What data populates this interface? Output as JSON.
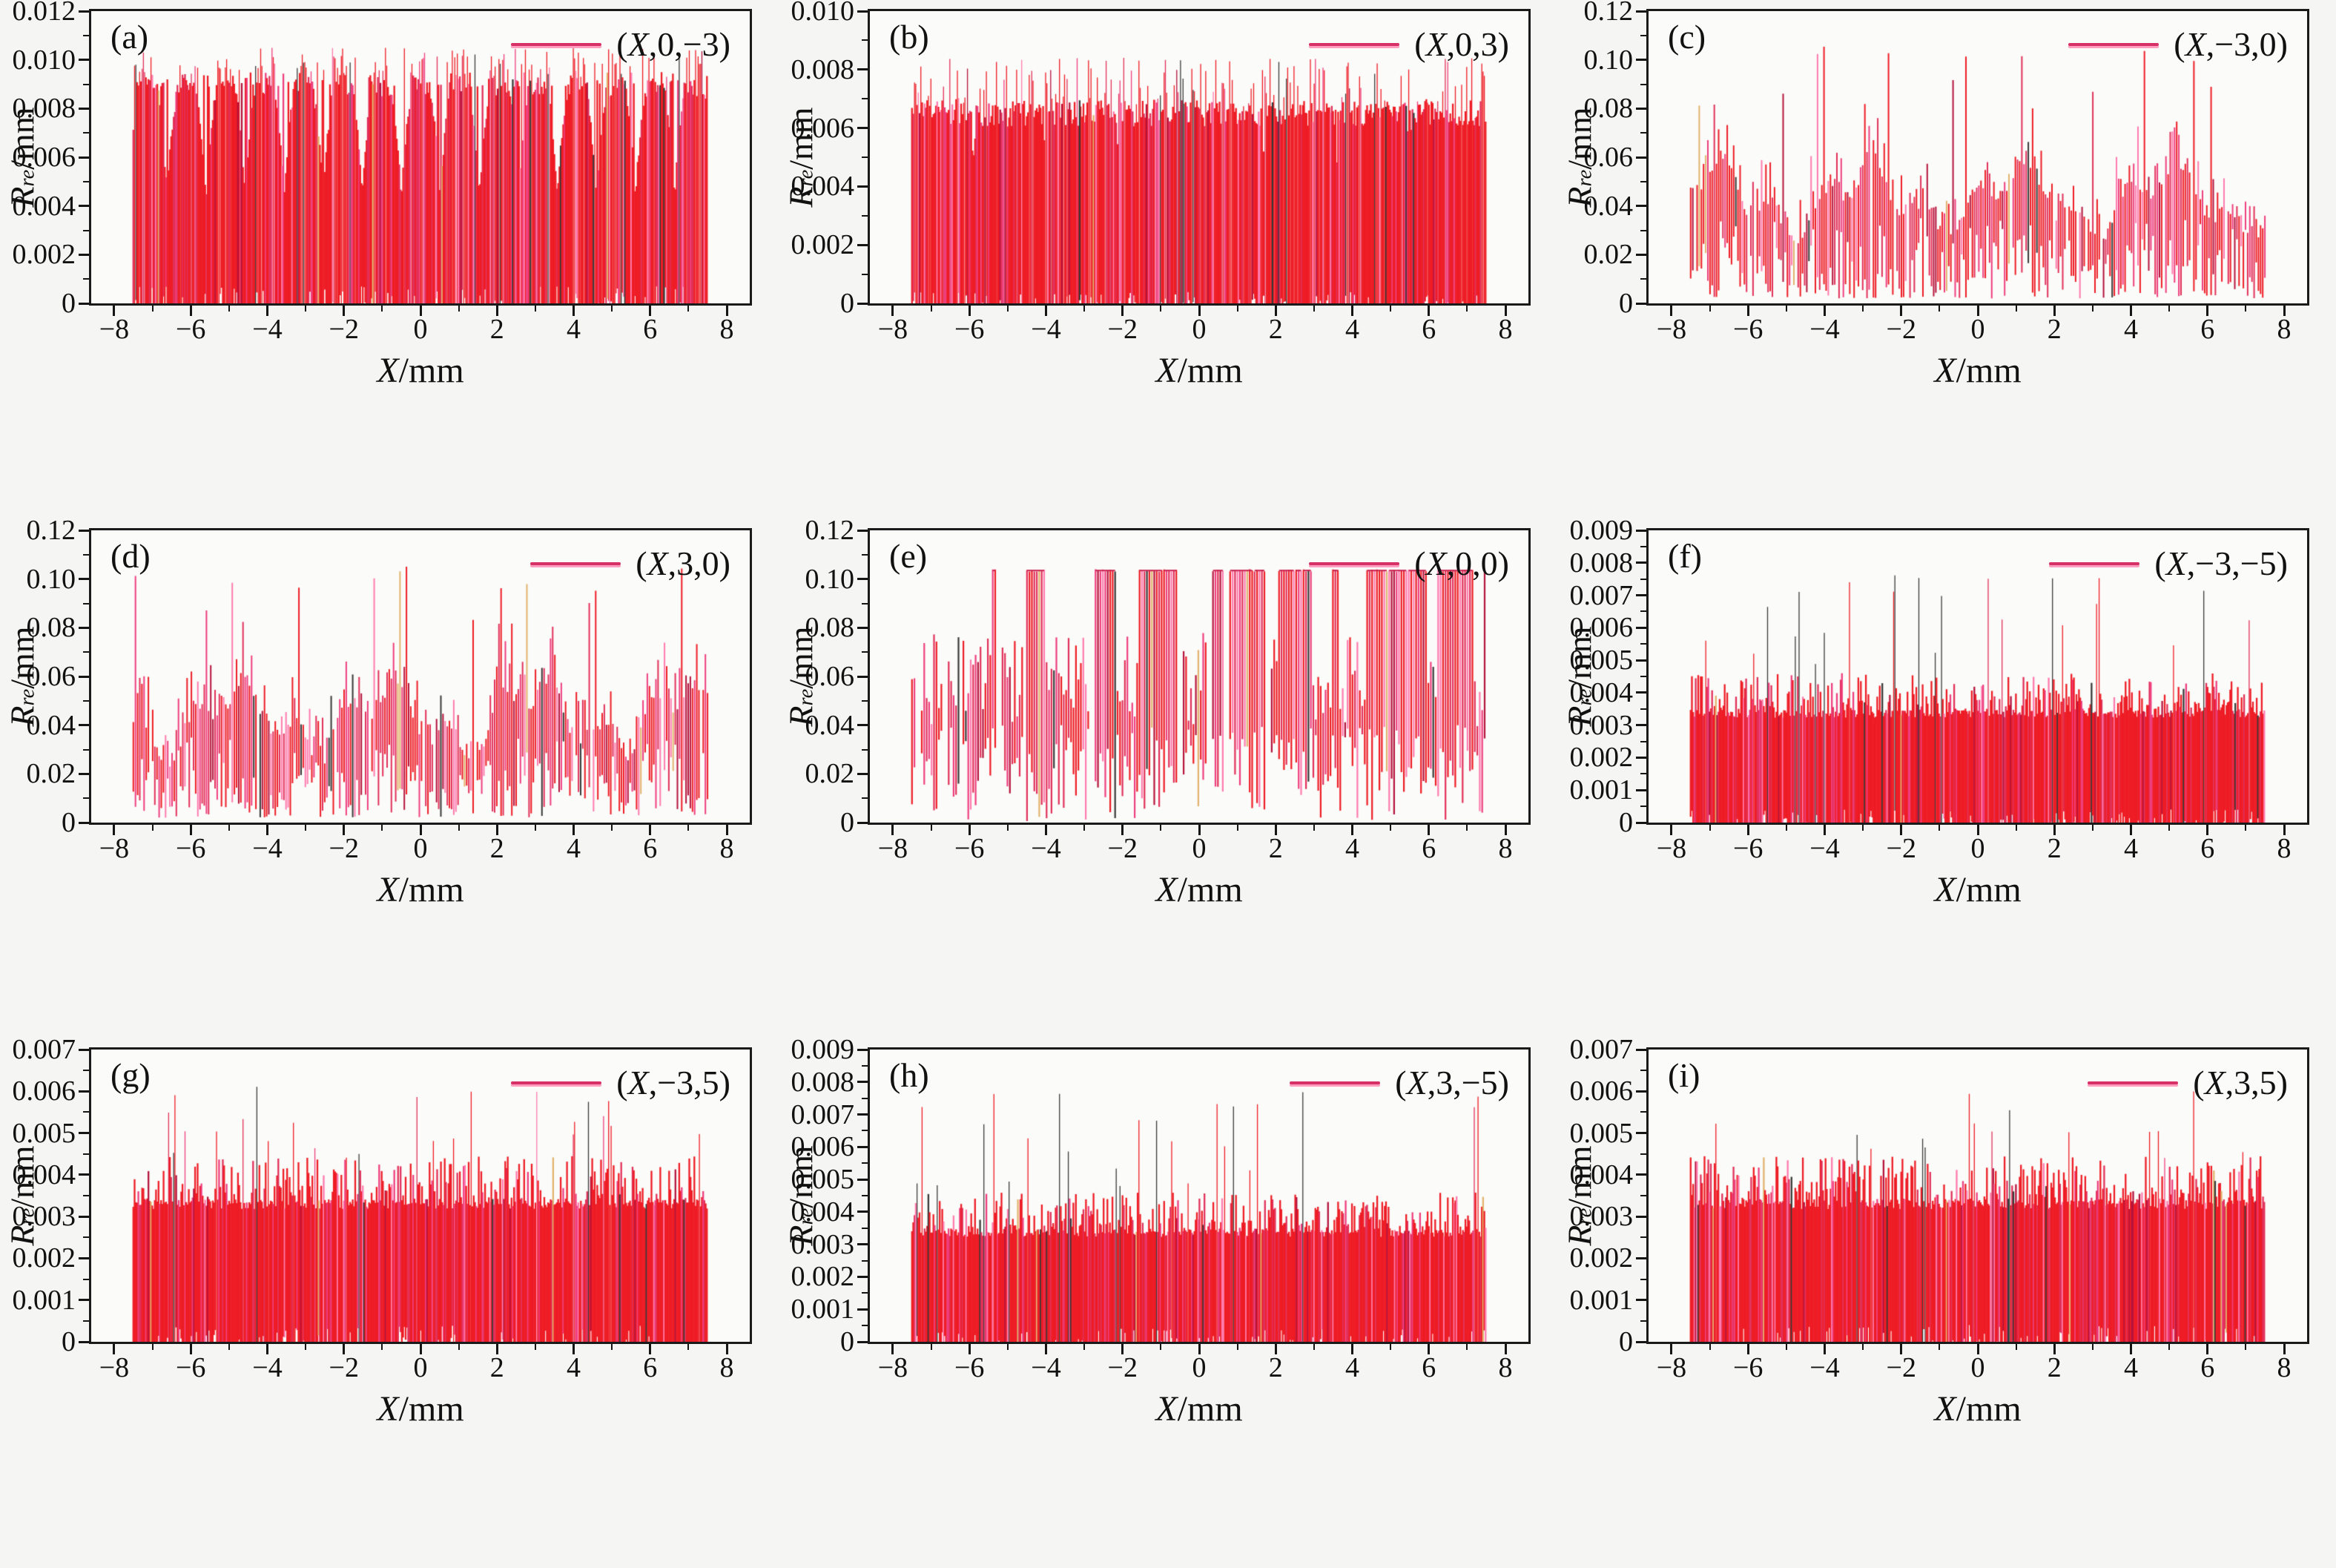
{
  "page": {
    "background": "#f5f5f3",
    "plot_background": "#fbfbf9",
    "frame_color": "#1a1a1a"
  },
  "axes_shared": {
    "xlabel_var": "X",
    "xlabel_unit": "/mm",
    "ylabel_var": "R",
    "ylabel_sub": "re",
    "ylabel_unit": "/mm"
  },
  "colors": {
    "legend_line": "#d63066",
    "legend_line_shadow": "#ff9ec0",
    "block_red": "#ee1c25",
    "plateau_line": "#c81f4e",
    "palette": [
      "#ee1c25",
      "#e23059",
      "#ef3e7e",
      "#ff7bae",
      "#b5123b",
      "#383838",
      "#e2b36e"
    ]
  },
  "chart_data": [
    {
      "panel_label": "(a)",
      "type": "line",
      "legend_full": "(X,0,−3)",
      "legend_pre": "(",
      "legend_var": "X",
      "legend_rest": ",0,−3)",
      "xlabel": "X/mm",
      "ylabel": "Rre/mm",
      "xlim": [
        -8.6,
        8.6
      ],
      "data_x_range": [
        -7.5,
        7.5
      ],
      "xtick_values": [
        -8,
        -6,
        -4,
        -2,
        0,
        2,
        4,
        6,
        8
      ],
      "xtick_labels": [
        "−8",
        "−6",
        "−4",
        "−2",
        "0",
        "2",
        "4",
        "6",
        "8"
      ],
      "xminor_values": [
        -7,
        -5,
        -3,
        -1,
        1,
        3,
        5,
        7
      ],
      "ylim": [
        0,
        0.012
      ],
      "ytick_values": [
        0,
        0.002,
        0.004,
        0.006,
        0.008,
        0.01,
        0.012
      ],
      "ytick_labels": [
        "0",
        "0.002",
        "0.004",
        "0.006",
        "0.008",
        "0.010",
        "0.012"
      ],
      "series": {
        "name": "(X,0,−3)",
        "kind": "block",
        "seed": 101,
        "block_top": 0.0089,
        "top_jitter": 0.0004,
        "notch_period": 1.02,
        "notch_phase": 0.5,
        "notch_width": 0.3,
        "notch_min": 0.0042,
        "spike_p": 0.22,
        "spike_lo": 0.0093,
        "spike_hi": 0.0105,
        "spike_cluster_period": 1.02,
        "spike_cluster_phase": 0.5,
        "spike_dark_p": 0.08,
        "fringe_p": 0.3,
        "fringe_h": 0.0006,
        "bottom_bump": 0.0007,
        "summary_min": 0,
        "summary_typical_top": 0.009,
        "summary_peak": 0.0105
      }
    },
    {
      "panel_label": "(b)",
      "type": "line",
      "legend_full": "(X,0,3)",
      "legend_pre": "(",
      "legend_var": "X",
      "legend_rest": ",0,3)",
      "xlabel": "X/mm",
      "ylabel": "Rre/mm",
      "xlim": [
        -8.6,
        8.6
      ],
      "data_x_range": [
        -7.5,
        7.5
      ],
      "xtick_values": [
        -8,
        -6,
        -4,
        -2,
        0,
        2,
        4,
        6,
        8
      ],
      "xtick_labels": [
        "−8",
        "−6",
        "−4",
        "−2",
        "0",
        "2",
        "4",
        "6",
        "8"
      ],
      "xminor_values": [
        -7,
        -5,
        -3,
        -1,
        1,
        3,
        5,
        7
      ],
      "ylim": [
        0,
        0.01
      ],
      "ytick_values": [
        0,
        0.002,
        0.004,
        0.006,
        0.008,
        0.01
      ],
      "ytick_labels": [
        "0",
        "0.002",
        "0.004",
        "0.006",
        "0.008",
        "0.010"
      ],
      "series": {
        "name": "(X,0,3)",
        "kind": "block",
        "seed": 202,
        "block_top": 0.0065,
        "top_jitter": 0.00045,
        "notch_period": 1.9,
        "notch_phase": 0.2,
        "notch_width": 0.1,
        "notch_min": 0.0047,
        "spike_p": 0.28,
        "spike_lo": 0.0067,
        "spike_hi": 0.0084,
        "spike_dark_p": 0.08,
        "fringe_p": 0.25,
        "fringe_h": 0.0005,
        "bottom_bump": 0.0004,
        "summary_min": 0,
        "summary_typical_top": 0.0065,
        "summary_peak": 0.0084
      }
    },
    {
      "panel_label": "(c)",
      "type": "line",
      "legend_full": "(X,−3,0)",
      "legend_pre": "(",
      "legend_var": "X",
      "legend_rest": ",−3,0)",
      "xlabel": "X/mm",
      "ylabel": "Rre/mm",
      "xlim": [
        -8.6,
        8.6
      ],
      "data_x_range": [
        -7.5,
        7.5
      ],
      "xtick_values": [
        -8,
        -6,
        -4,
        -2,
        0,
        2,
        4,
        6,
        8
      ],
      "xtick_labels": [
        "−8",
        "−6",
        "−4",
        "−2",
        "0",
        "2",
        "4",
        "6",
        "8"
      ],
      "xminor_values": [
        -7,
        -5,
        -3,
        -1,
        1,
        3,
        5,
        7
      ],
      "ylim": [
        0,
        0.12
      ],
      "ytick_values": [
        0,
        0.02,
        0.04,
        0.06,
        0.08,
        0.1,
        0.12
      ],
      "ytick_labels": [
        "0",
        "0.02",
        "0.04",
        "0.06",
        "0.08",
        "0.10",
        "0.12"
      ],
      "series": {
        "name": "(X,−3,0)",
        "kind": "spiky",
        "seed": 303,
        "env_base": 0.04,
        "env_amp1": 0.011,
        "env_per1": 3.9,
        "phase1": 0.0,
        "env_amp2": 0.007,
        "env_per2": 1.33,
        "phase2": 0.4,
        "rand_amp": 0.03,
        "spike_p": 0.065,
        "spike_lo": 0.08,
        "spike_hi": 0.106,
        "summary_min": 0,
        "summary_center": 0.045,
        "summary_peak": 0.105
      }
    },
    {
      "panel_label": "(d)",
      "type": "line",
      "legend_full": "(X,3,0)",
      "legend_pre": "(",
      "legend_var": "X",
      "legend_rest": ",3,0)",
      "xlabel": "X/mm",
      "ylabel": "Rre/mm",
      "xlim": [
        -8.6,
        8.6
      ],
      "data_x_range": [
        -7.5,
        7.5
      ],
      "xtick_values": [
        -8,
        -6,
        -4,
        -2,
        0,
        2,
        4,
        6,
        8
      ],
      "xtick_labels": [
        "−8",
        "−6",
        "−4",
        "−2",
        "0",
        "2",
        "4",
        "6",
        "8"
      ],
      "xminor_values": [
        -7,
        -5,
        -3,
        -1,
        1,
        3,
        5,
        7
      ],
      "ylim": [
        0,
        0.12
      ],
      "ytick_values": [
        0,
        0.02,
        0.04,
        0.06,
        0.08,
        0.1,
        0.12
      ],
      "ytick_labels": [
        "0",
        "0.02",
        "0.04",
        "0.06",
        "0.08",
        "0.10",
        "0.12"
      ],
      "series": {
        "name": "(X,3,0)",
        "kind": "spiky",
        "seed": 404,
        "env_base": 0.04,
        "env_amp1": 0.011,
        "env_per1": 3.9,
        "phase1": 1.9,
        "env_amp2": 0.007,
        "env_per2": 1.33,
        "phase2": 0.9,
        "rand_amp": 0.03,
        "spike_p": 0.065,
        "spike_lo": 0.08,
        "spike_hi": 0.106,
        "summary_min": 0,
        "summary_center": 0.045,
        "summary_peak": 0.105
      }
    },
    {
      "panel_label": "(e)",
      "type": "line",
      "legend_full": "(X,0,0)",
      "legend_pre": "(",
      "legend_var": "X",
      "legend_rest": ",0,0)",
      "xlabel": "X/mm",
      "ylabel": "Rre/mm",
      "xlim": [
        -8.6,
        8.6
      ],
      "data_x_range": [
        -7.5,
        7.5
      ],
      "xtick_values": [
        -8,
        -6,
        -4,
        -2,
        0,
        2,
        4,
        6,
        8
      ],
      "xtick_labels": [
        "−8",
        "−6",
        "−4",
        "−2",
        "0",
        "2",
        "4",
        "6",
        "8"
      ],
      "xminor_values": [
        -7,
        -5,
        -3,
        -1,
        1,
        3,
        5,
        7
      ],
      "ylim": [
        0,
        0.12
      ],
      "ytick_values": [
        0,
        0.02,
        0.04,
        0.06,
        0.08,
        0.1,
        0.12
      ],
      "ytick_labels": [
        "0",
        "0.02",
        "0.04",
        "0.06",
        "0.08",
        "0.10",
        "0.12"
      ],
      "series": {
        "name": "(X,0,0)",
        "kind": "clipped",
        "seed": 505,
        "clip_value": 0.1035,
        "clip_run_p": 0.48,
        "mid_lo": 0.038,
        "mid_amp": 0.04,
        "summary_min": 0,
        "summary_plateau": 0.104,
        "summary_peak": 0.104
      }
    },
    {
      "panel_label": "(f)",
      "type": "line",
      "legend_full": "(X,−3,−5)",
      "legend_pre": "(",
      "legend_var": "X",
      "legend_rest": ",−3,−5)",
      "xlabel": "X/mm",
      "ylabel": "Rre/mm",
      "xlim": [
        -8.6,
        8.6
      ],
      "data_x_range": [
        -7.5,
        7.5
      ],
      "xtick_values": [
        -8,
        -6,
        -4,
        -2,
        0,
        2,
        4,
        6,
        8
      ],
      "xtick_labels": [
        "−8",
        "−6",
        "−4",
        "−2",
        "0",
        "2",
        "4",
        "6",
        "8"
      ],
      "xminor_values": [
        -7,
        -5,
        -3,
        -1,
        1,
        3,
        5,
        7
      ],
      "ylim": [
        0,
        0.009
      ],
      "ytick_values": [
        0,
        0.001,
        0.002,
        0.003,
        0.004,
        0.005,
        0.006,
        0.007,
        0.008,
        0.009
      ],
      "ytick_labels": [
        "0",
        "0.001",
        "0.002",
        "0.003",
        "0.004",
        "0.005",
        "0.006",
        "0.007",
        "0.008",
        "0.009"
      ],
      "series": {
        "name": "(X,−3,−5)",
        "kind": "block",
        "seed": 606,
        "block_top": 0.00335,
        "top_jitter": 0.00012,
        "spike_p": 0.055,
        "spike_lo": 0.0047,
        "spike_hi": 0.0077,
        "spike_dark_p": 0.4,
        "fringe_p": 0.62,
        "fringe_h": 0.00125,
        "bottom_bump": 0.0004,
        "summary_min": 0,
        "summary_typical_top": 0.0034,
        "summary_peak": 0.0076
      }
    },
    {
      "panel_label": "(g)",
      "type": "line",
      "legend_full": "(X,−3,5)",
      "legend_pre": "(",
      "legend_var": "X",
      "legend_rest": ",−3,5)",
      "xlabel": "X/mm",
      "ylabel": "Rre/mm",
      "xlim": [
        -8.6,
        8.6
      ],
      "data_x_range": [
        -7.5,
        7.5
      ],
      "xtick_values": [
        -8,
        -6,
        -4,
        -2,
        0,
        2,
        4,
        6,
        8
      ],
      "xtick_labels": [
        "−8",
        "−6",
        "−4",
        "−2",
        "0",
        "2",
        "4",
        "6",
        "8"
      ],
      "xminor_values": [
        -7,
        -5,
        -3,
        -1,
        1,
        3,
        5,
        7
      ],
      "ylim": [
        0,
        0.007
      ],
      "ytick_values": [
        0,
        0.001,
        0.002,
        0.003,
        0.004,
        0.005,
        0.006,
        0.007
      ],
      "ytick_labels": [
        "0",
        "0.001",
        "0.002",
        "0.003",
        "0.004",
        "0.005",
        "0.006",
        "0.007"
      ],
      "series": {
        "name": "(X,−3,5)",
        "kind": "block",
        "seed": 707,
        "block_top": 0.0033,
        "top_jitter": 0.00012,
        "spike_p": 0.05,
        "spike_lo": 0.0044,
        "spike_hi": 0.0062,
        "spike_dark_p": 0.4,
        "fringe_p": 0.6,
        "fringe_h": 0.00115,
        "bottom_bump": 0.0004,
        "summary_min": 0,
        "summary_typical_top": 0.0033,
        "summary_peak": 0.0061
      }
    },
    {
      "panel_label": "(h)",
      "type": "line",
      "legend_full": "(X,3,−5)",
      "legend_pre": "(",
      "legend_var": "X",
      "legend_rest": ",3,−5)",
      "xlabel": "X/mm",
      "ylabel": "Rre/mm",
      "xlim": [
        -8.6,
        8.6
      ],
      "data_x_range": [
        -7.5,
        7.5
      ],
      "xtick_values": [
        -8,
        -6,
        -4,
        -2,
        0,
        2,
        4,
        6,
        8
      ],
      "xtick_labels": [
        "−8",
        "−6",
        "−4",
        "−2",
        "0",
        "2",
        "4",
        "6",
        "8"
      ],
      "xminor_values": [
        -7,
        -5,
        -3,
        -1,
        1,
        3,
        5,
        7
      ],
      "ylim": [
        0,
        0.009
      ],
      "ytick_values": [
        0,
        0.001,
        0.002,
        0.003,
        0.004,
        0.005,
        0.006,
        0.007,
        0.008,
        0.009
      ],
      "ytick_labels": [
        "0",
        "0.001",
        "0.002",
        "0.003",
        "0.004",
        "0.005",
        "0.006",
        "0.007",
        "0.008",
        "0.009"
      ],
      "series": {
        "name": "(X,3,−5)",
        "kind": "block",
        "seed": 808,
        "block_top": 0.00335,
        "top_jitter": 0.00012,
        "spike_p": 0.055,
        "spike_lo": 0.0047,
        "spike_hi": 0.0077,
        "spike_dark_p": 0.4,
        "fringe_p": 0.62,
        "fringe_h": 0.00125,
        "bottom_bump": 0.0004,
        "summary_min": 0,
        "summary_typical_top": 0.0034,
        "summary_peak": 0.0076
      }
    },
    {
      "panel_label": "(i)",
      "type": "line",
      "legend_full": "(X,3,5)",
      "legend_pre": "(",
      "legend_var": "X",
      "legend_rest": ",3,5)",
      "xlabel": "X/mm",
      "ylabel": "Rre/mm",
      "xlim": [
        -8.6,
        8.6
      ],
      "data_x_range": [
        -7.5,
        7.5
      ],
      "xtick_values": [
        -8,
        -6,
        -4,
        -2,
        0,
        2,
        4,
        6,
        8
      ],
      "xtick_labels": [
        "−8",
        "−6",
        "−4",
        "−2",
        "0",
        "2",
        "4",
        "6",
        "8"
      ],
      "xminor_values": [
        -7,
        -5,
        -3,
        -1,
        1,
        3,
        5,
        7
      ],
      "ylim": [
        0,
        0.007
      ],
      "ytick_values": [
        0,
        0.001,
        0.002,
        0.003,
        0.004,
        0.005,
        0.006,
        0.007
      ],
      "ytick_labels": [
        "0",
        "0.001",
        "0.002",
        "0.003",
        "0.004",
        "0.005",
        "0.006",
        "0.007"
      ],
      "series": {
        "name": "(X,3,5)",
        "kind": "block",
        "seed": 909,
        "block_top": 0.0033,
        "top_jitter": 0.00012,
        "spike_p": 0.05,
        "spike_lo": 0.0044,
        "spike_hi": 0.0062,
        "spike_dark_p": 0.4,
        "fringe_p": 0.6,
        "fringe_h": 0.00115,
        "bottom_bump": 0.0004,
        "summary_min": 0,
        "summary_typical_top": 0.0033,
        "summary_peak": 0.0061
      }
    }
  ]
}
